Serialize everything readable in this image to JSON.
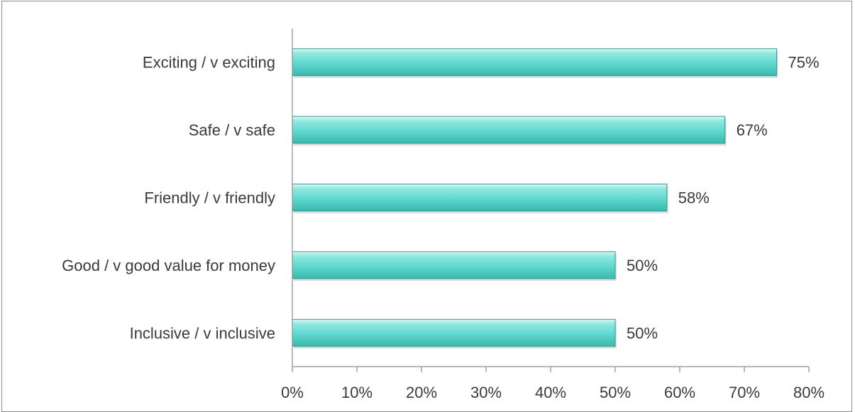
{
  "chart_data": {
    "type": "bar",
    "orientation": "horizontal",
    "categories": [
      "Exciting / v exciting",
      "Safe / v safe",
      "Friendly / v friendly",
      "Good / v good value for money",
      "Inclusive / v inclusive"
    ],
    "values": [
      75,
      67,
      58,
      50,
      50
    ],
    "value_labels": [
      "75%",
      "67%",
      "58%",
      "50%",
      "50%"
    ],
    "xlim": [
      0,
      80
    ],
    "x_ticks": [
      0,
      10,
      20,
      30,
      40,
      50,
      60,
      70,
      80
    ],
    "x_tick_labels": [
      "0%",
      "10%",
      "20%",
      "30%",
      "40%",
      "50%",
      "60%",
      "70%",
      "80%"
    ],
    "title": "",
    "xlabel": "",
    "ylabel": "",
    "grid": false,
    "legend": "none",
    "colors": {
      "bar_fill": "#5fd8cf",
      "bar_light": "#c8f4ef",
      "bar_edge": "#2f9e95",
      "axis": "#8c8c8c",
      "text": "#3a3a3a"
    }
  }
}
